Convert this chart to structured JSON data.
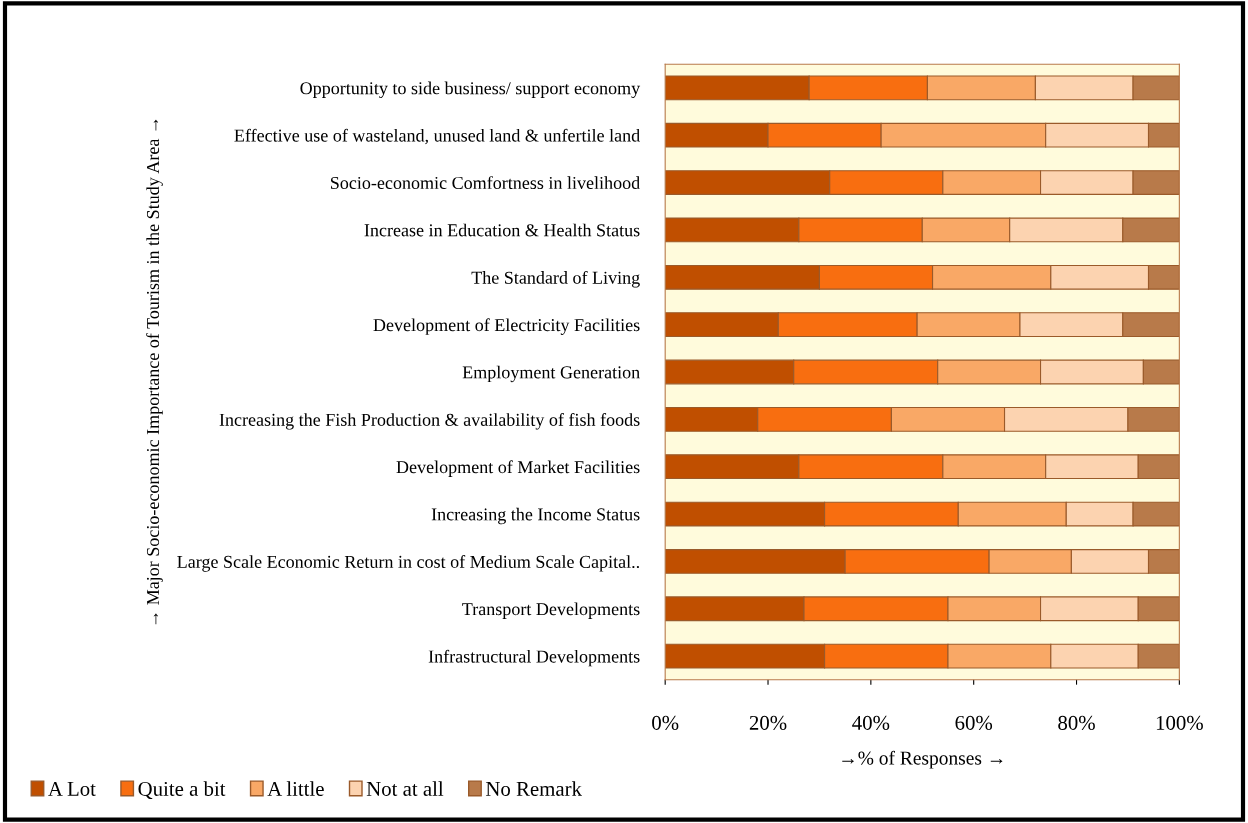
{
  "chart_data": {
    "type": "bar",
    "orientation": "horizontal",
    "stacked": true,
    "xlabel": "→% of Responses →",
    "ylabel": "→ Major Socio-economic Importance of Tourism in the Study Area →",
    "categories": [
      "Opportunity to side business/ support economy",
      "Effective use of wasteland, unused land & unfertile land",
      "Socio-economic Comfortness in livelihood",
      "Increase in Education & Health Status",
      "The Standard of Living",
      "Development of Electricity Facilities",
      "Employment Generation",
      "Increasing the Fish Production & availability of fish foods",
      "Development of Market Facilities",
      "Increasing the Income Status",
      "Large Scale Economic Return in cost of Medium Scale Capital..",
      "Transport Developments",
      "Infrastructural Developments"
    ],
    "series": [
      {
        "name": "A Lot",
        "color": "#c04f00",
        "values": [
          28,
          20,
          32,
          26,
          30,
          22,
          25,
          18,
          26,
          31,
          35,
          27,
          31
        ]
      },
      {
        "name": "Quite a bit",
        "color": "#f86e10",
        "values": [
          23,
          22,
          22,
          24,
          22,
          27,
          28,
          26,
          28,
          26,
          28,
          28,
          24
        ]
      },
      {
        "name": "A little",
        "color": "#f9a866",
        "values": [
          21,
          32,
          19,
          17,
          23,
          20,
          20,
          22,
          20,
          21,
          16,
          18,
          20
        ]
      },
      {
        "name": "Not at all",
        "color": "#fcd3b0",
        "values": [
          19,
          20,
          18,
          22,
          19,
          20,
          20,
          24,
          18,
          13,
          15,
          19,
          17
        ]
      },
      {
        "name": "No Remark",
        "color": "#b87a4a",
        "values": [
          9,
          6,
          9,
          11,
          6,
          11,
          7,
          10,
          8,
          9,
          6,
          8,
          8
        ]
      }
    ],
    "xlim": [
      0,
      100
    ],
    "xticks": [
      {
        "value": 0,
        "label": "0%"
      },
      {
        "value": 20,
        "label": "20%"
      },
      {
        "value": 40,
        "label": "40%"
      },
      {
        "value": 60,
        "label": "60%"
      },
      {
        "value": 80,
        "label": "80%"
      },
      {
        "value": 100,
        "label": "100%"
      }
    ],
    "legend": "bottom left",
    "grid": false
  }
}
